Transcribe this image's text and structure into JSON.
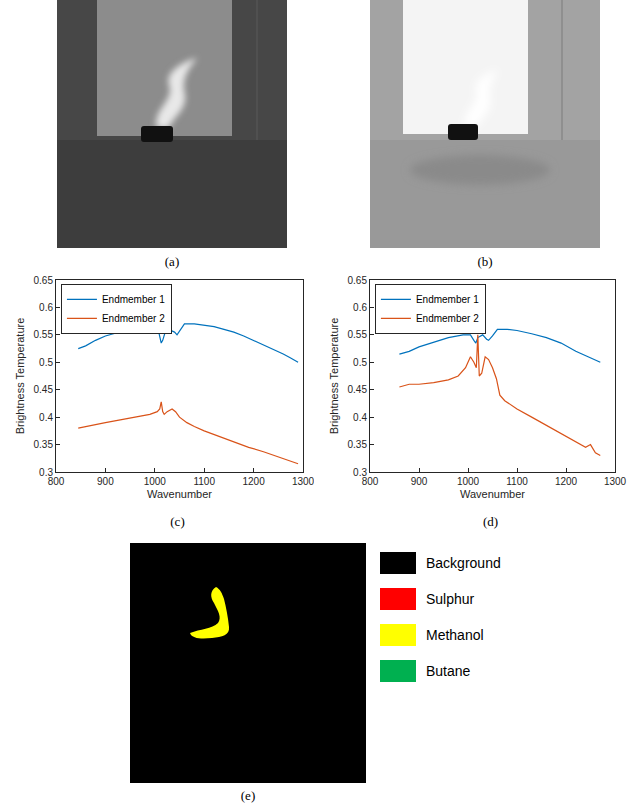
{
  "images": [
    {
      "label": "(a)"
    },
    {
      "label": "(b)"
    }
  ],
  "chart_data": [
    {
      "type": "line",
      "label": "(c)",
      "x_label": "Wavenumber",
      "y_label": "Brightness Temperature",
      "xlim": [
        800,
        1300
      ],
      "ylim": [
        0.3,
        0.65
      ],
      "xticks": [
        800,
        900,
        1000,
        1100,
        1200,
        1300
      ],
      "yticks": [
        0.3,
        0.35,
        0.4,
        0.45,
        0.5,
        0.55,
        0.6,
        0.65
      ],
      "grid": false,
      "legend": "upper left",
      "series": [
        {
          "name": "Endmember 1",
          "color": "#0072BD",
          "x": [
            845,
            860,
            880,
            900,
            920,
            940,
            960,
            980,
            1000,
            1008,
            1013,
            1016,
            1020,
            1028,
            1040,
            1045,
            1050,
            1060,
            1080,
            1100,
            1120,
            1140,
            1160,
            1180,
            1200,
            1220,
            1240,
            1260,
            1275,
            1290
          ],
          "values": [
            0.525,
            0.53,
            0.54,
            0.548,
            0.553,
            0.558,
            0.562,
            0.563,
            0.562,
            0.555,
            0.535,
            0.54,
            0.552,
            0.56,
            0.555,
            0.55,
            0.557,
            0.57,
            0.57,
            0.568,
            0.565,
            0.56,
            0.555,
            0.548,
            0.54,
            0.532,
            0.524,
            0.515,
            0.508,
            0.5
          ]
        },
        {
          "name": "Endmember 2",
          "color": "#D95319",
          "x": [
            845,
            870,
            900,
            930,
            960,
            990,
            1005,
            1010,
            1013,
            1016,
            1019,
            1025,
            1035,
            1042,
            1050,
            1065,
            1080,
            1100,
            1130,
            1160,
            1190,
            1220,
            1250,
            1270,
            1290
          ],
          "values": [
            0.38,
            0.385,
            0.39,
            0.395,
            0.4,
            0.405,
            0.41,
            0.415,
            0.428,
            0.41,
            0.405,
            0.41,
            0.415,
            0.41,
            0.4,
            0.39,
            0.383,
            0.375,
            0.365,
            0.355,
            0.345,
            0.337,
            0.328,
            0.322,
            0.315
          ]
        }
      ]
    },
    {
      "type": "line",
      "label": "(d)",
      "x_label": "Wavenumber",
      "y_label": "Brightness Temperature",
      "xlim": [
        800,
        1300
      ],
      "ylim": [
        0.3,
        0.65
      ],
      "xticks": [
        800,
        900,
        1000,
        1100,
        1200,
        1300
      ],
      "yticks": [
        0.3,
        0.35,
        0.4,
        0.45,
        0.5,
        0.55,
        0.6,
        0.65
      ],
      "grid": false,
      "legend": "upper left",
      "series": [
        {
          "name": "Endmember 1",
          "color": "#0072BD",
          "x": [
            860,
            880,
            900,
            930,
            960,
            990,
            1005,
            1012,
            1016,
            1020,
            1030,
            1038,
            1042,
            1050,
            1060,
            1080,
            1100,
            1130,
            1160,
            1190,
            1220,
            1245,
            1270
          ],
          "values": [
            0.515,
            0.52,
            0.528,
            0.537,
            0.545,
            0.55,
            0.55,
            0.54,
            0.535,
            0.545,
            0.55,
            0.542,
            0.54,
            0.548,
            0.56,
            0.56,
            0.558,
            0.552,
            0.545,
            0.535,
            0.52,
            0.51,
            0.5
          ]
        },
        {
          "name": "Endmember 2",
          "color": "#D95319",
          "x": [
            860,
            880,
            900,
            930,
            960,
            980,
            995,
            1005,
            1012,
            1017,
            1020,
            1023,
            1028,
            1035,
            1042,
            1050,
            1058,
            1065,
            1075,
            1100,
            1130,
            1160,
            1190,
            1220,
            1240,
            1250,
            1260,
            1270
          ],
          "values": [
            0.455,
            0.46,
            0.46,
            0.463,
            0.468,
            0.475,
            0.49,
            0.51,
            0.5,
            0.49,
            0.55,
            0.475,
            0.48,
            0.51,
            0.505,
            0.49,
            0.47,
            0.44,
            0.43,
            0.415,
            0.4,
            0.385,
            0.37,
            0.355,
            0.345,
            0.35,
            0.335,
            0.33
          ]
        }
      ]
    }
  ],
  "segmentation": {
    "label": "(e)",
    "legend": [
      {
        "name": "Background",
        "color": "#000000"
      },
      {
        "name": "Sulphur",
        "color": "#ff0000"
      },
      {
        "name": "Methanol",
        "color": "#ffff00"
      },
      {
        "name": "Butane",
        "color": "#00b050"
      }
    ]
  }
}
